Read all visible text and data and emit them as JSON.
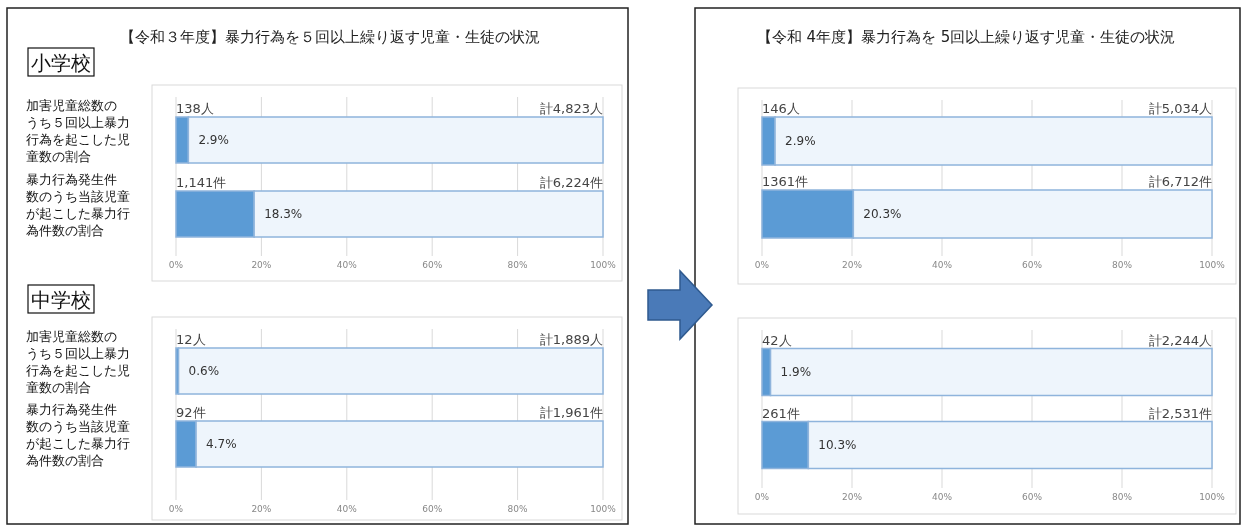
{
  "chart_data": [
    {
      "type": "bar",
      "orientation": "horizontal",
      "stacked": true,
      "title": "【令和３年度】暴力行為を５回以上繰り返す児童・生徒の状況",
      "subtitle": "小学校",
      "categories": [
        "加害児童総数のうち５回以上暴力行為を起こした児童数の割合",
        "暴力行為発生件数のうち当該児童が起こした暴力行為件数の割合"
      ],
      "series": [
        {
          "color": "#5b9bd5",
          "values": [
            2.9,
            18.3
          ],
          "value_labels": [
            "2.9%",
            "18.3%"
          ]
        },
        {
          "color": "#eef5fc",
          "values": [
            97.1,
            81.7
          ]
        }
      ],
      "xlim": [
        0,
        100
      ],
      "xticks": [
        {
          "value": 0,
          "label": "0%"
        },
        {
          "value": 20,
          "label": "20%"
        },
        {
          "value": 40,
          "label": "40%"
        },
        {
          "value": 60,
          "label": "60%"
        },
        {
          "value": 80,
          "label": "80%"
        },
        {
          "value": 100,
          "label": "100%"
        }
      ],
      "grid": "x",
      "annotations": [
        "138人",
        "計4,823人",
        "1,141件",
        "計6,224件"
      ]
    },
    {
      "type": "bar",
      "orientation": "horizontal",
      "stacked": true,
      "subtitle": "中学校",
      "categories": [
        "加害児童総数のうち５回以上暴力行為を起こした児童数の割合",
        "暴力行為発生件数のうち当該児童が起こした暴力行為件数の割合"
      ],
      "series": [
        {
          "color": "#5b9bd5",
          "values": [
            0.6,
            4.7
          ],
          "value_labels": [
            "0.6%",
            "4.7%"
          ]
        },
        {
          "color": "#eef5fc",
          "values": [
            99.4,
            95.3
          ]
        }
      ],
      "xlim": [
        0,
        100
      ],
      "xticks": [
        {
          "value": 0,
          "label": "0%"
        },
        {
          "value": 20,
          "label": "20%"
        },
        {
          "value": 40,
          "label": "40%"
        },
        {
          "value": 60,
          "label": "60%"
        },
        {
          "value": 80,
          "label": "80%"
        },
        {
          "value": 100,
          "label": "100%"
        }
      ],
      "grid": "x",
      "annotations": [
        "12人",
        "計1,889人",
        "92件",
        "計1,961件"
      ]
    },
    {
      "type": "bar",
      "orientation": "horizontal",
      "stacked": true,
      "title": "【令和 4年度】暴力行為を 5回以上繰り返す児童・生徒の状況",
      "categories": [
        null,
        null
      ],
      "series": [
        {
          "color": "#5b9bd5",
          "values": [
            2.9,
            20.3
          ],
          "value_labels": [
            "2.9%",
            "20.3%"
          ]
        },
        {
          "color": "#eef5fc",
          "values": [
            97.1,
            79.7
          ]
        }
      ],
      "xlim": [
        0,
        100
      ],
      "xticks": [
        {
          "value": 0,
          "label": "0%"
        },
        {
          "value": 20,
          "label": "20%"
        },
        {
          "value": 40,
          "label": "40%"
        },
        {
          "value": 60,
          "label": "60%"
        },
        {
          "value": 80,
          "label": "80%"
        },
        {
          "value": 100,
          "label": "100%"
        }
      ],
      "grid": "x",
      "annotations": [
        "146人",
        "計5,034人",
        "1361件",
        "計6,712件"
      ]
    },
    {
      "type": "bar",
      "orientation": "horizontal",
      "stacked": true,
      "categories": [
        null,
        null
      ],
      "series": [
        {
          "color": "#5b9bd5",
          "values": [
            1.9,
            10.3
          ],
          "value_labels": [
            "1.9%",
            "10.3%"
          ]
        },
        {
          "color": "#eef5fc",
          "values": [
            98.1,
            89.7
          ]
        }
      ],
      "xlim": [
        0,
        100
      ],
      "xticks": [
        {
          "value": 0,
          "label": "0%"
        },
        {
          "value": 20,
          "label": "20%"
        },
        {
          "value": 40,
          "label": "40%"
        },
        {
          "value": 60,
          "label": "60%"
        },
        {
          "value": 80,
          "label": "80%"
        },
        {
          "value": 100,
          "label": "100%"
        }
      ],
      "grid": "x",
      "annotations": [
        "42人",
        "計2,244人",
        "261件",
        "計2,531件"
      ]
    }
  ]
}
